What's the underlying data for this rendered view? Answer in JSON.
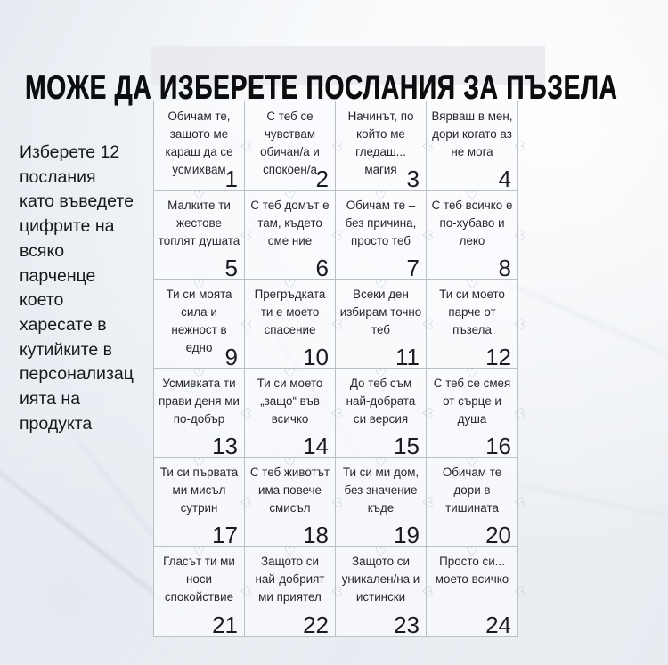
{
  "page": {
    "title": "МОЖЕ ДА ИЗБЕРЕТЕ ПОСЛАНИЯ ЗА ПЪЗЕЛА"
  },
  "sidebar": {
    "instructions": "Изберете 12\nпослания\nкато въведете\nцифрите на\nвсяко\nпарченце\nкоето\nхаресате в\nкутийките в\nперсонализац\nията на\nпродукта"
  },
  "icons": {
    "heart_connector": "♡"
  },
  "colors": {
    "background": "#eef1f5",
    "piece_outline": "#bcc0c6",
    "highlight_band": "#e9eaee",
    "text": "#26272b",
    "title": "#0c0d0f"
  },
  "puzzle": {
    "columns": 4,
    "rows": 6,
    "pieces": [
      {
        "number": "1",
        "message": "Обичам те, защото ме караш да се усмихвам"
      },
      {
        "number": "2",
        "message": "С теб се чувствам обичан/а и спокоен/а"
      },
      {
        "number": "3",
        "message": "Начинът, по който ме гледаш... магия"
      },
      {
        "number": "4",
        "message": "Вярваш в мен, дори когато аз не мога"
      },
      {
        "number": "5",
        "message": "Малките ти жестове топлят душата"
      },
      {
        "number": "6",
        "message": "С теб домът е там, където сме ние"
      },
      {
        "number": "7",
        "message": "Обичам те – без причина, просто теб"
      },
      {
        "number": "8",
        "message": "С теб всичко е по-хубаво и леко"
      },
      {
        "number": "9",
        "message": "Ти си моята сила и нежност в едно"
      },
      {
        "number": "10",
        "message": "Прегръдката ти е моето спасение"
      },
      {
        "number": "11",
        "message": "Всеки ден избирам точно теб"
      },
      {
        "number": "12",
        "message": "Ти си моето парче от пъзела"
      },
      {
        "number": "13",
        "message": "Усмивката ти прави деня ми по-добър"
      },
      {
        "number": "14",
        "message": "Ти си моето „защо“ във всичко"
      },
      {
        "number": "15",
        "message": "До теб съм най-добрата си версия"
      },
      {
        "number": "16",
        "message": "С теб се смея от сърце и душа"
      },
      {
        "number": "17",
        "message": "Ти си първата ми мисъл сутрин"
      },
      {
        "number": "18",
        "message": "С теб животът има повече смисъл"
      },
      {
        "number": "19",
        "message": "Ти си ми дом, без значение къде"
      },
      {
        "number": "20",
        "message": "Обичам те дори в тишината"
      },
      {
        "number": "21",
        "message": "Гласът ти ми носи спокойствие"
      },
      {
        "number": "22",
        "message": "Защото си най-добрият ми приятел"
      },
      {
        "number": "23",
        "message": "Защото си уникален/на и истински"
      },
      {
        "number": "24",
        "message": "Просто си... моето всичко"
      }
    ]
  }
}
